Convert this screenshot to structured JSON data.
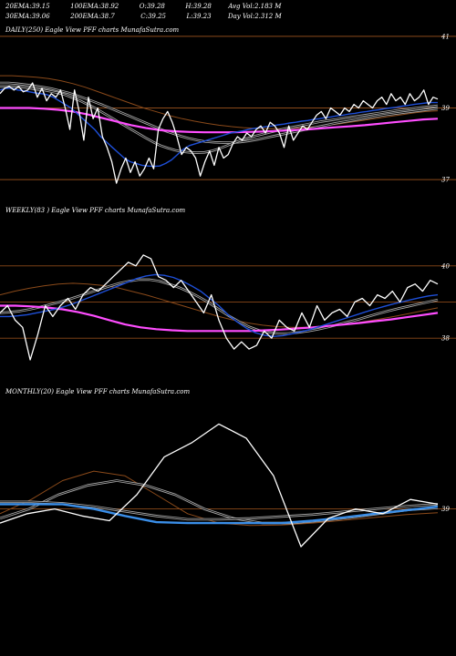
{
  "header": {
    "row1": [
      {
        "label": "20EMA:",
        "value": "39.15"
      },
      {
        "label": "100EMA:",
        "value": "38.92"
      },
      {
        "label": "O:",
        "value": "39.28"
      },
      {
        "label": "H:",
        "value": "39.28"
      },
      {
        "label": "Avg Vol:",
        "value": "2.183  M"
      }
    ],
    "row2": [
      {
        "label": "30EMA:",
        "value": "39.06"
      },
      {
        "label": "200EMA:",
        "value": "38.7"
      },
      {
        "label": "C:",
        "value": "39.25"
      },
      {
        "label": "L:",
        "value": "39.23"
      },
      {
        "label": "Day Vol:",
        "value": "2.312  M"
      }
    ]
  },
  "panels": {
    "daily": {
      "label": "DAILY(250) Eagle  View  PFF charts MunafaSutra.com"
    },
    "weekly": {
      "label": "WEEKLY(83                  ) Eagle  View  PFF charts MunafaSutra.com"
    },
    "monthly": {
      "label": "MONTHLY(20) Eagle  View  PFF charts MunafaSutra.com"
    }
  },
  "colors": {
    "background": "#000000",
    "price": "#ffffff",
    "ema20": "#1e4fd8",
    "ema_grey": "#aaaaaa",
    "ema_brown": "#8b4a1a",
    "ema200": "#ff4dff",
    "hline": "#8b4a1a"
  },
  "chart_data": [
    {
      "type": "line",
      "name": "daily",
      "ylim": [
        36.8,
        41.2
      ],
      "ticks": [
        {
          "y": 41,
          "label": "41"
        },
        {
          "y": 39,
          "label": "39"
        },
        {
          "y": 37,
          "label": "37"
        }
      ],
      "hlines": [
        41,
        39,
        37
      ],
      "series": [
        {
          "key": "price",
          "values": [
            39.4,
            39.55,
            39.6,
            39.5,
            39.6,
            39.45,
            39.5,
            39.7,
            39.3,
            39.55,
            39.2,
            39.4,
            39.3,
            39.5,
            39.0,
            38.4,
            39.5,
            38.9,
            38.1,
            39.3,
            38.7,
            39.0,
            38.2,
            37.9,
            37.5,
            36.9,
            37.3,
            37.6,
            37.2,
            37.5,
            37.1,
            37.3,
            37.6,
            37.3,
            38.4,
            38.7,
            38.9,
            38.6,
            38.2,
            37.7,
            37.9,
            37.8,
            37.6,
            37.1,
            37.5,
            37.8,
            37.4,
            37.9,
            37.6,
            37.7,
            38.0,
            38.2,
            38.1,
            38.3,
            38.2,
            38.4,
            38.5,
            38.3,
            38.6,
            38.5,
            38.3,
            37.9,
            38.5,
            38.1,
            38.3,
            38.5,
            38.4,
            38.6,
            38.8,
            38.9,
            38.7,
            39.0,
            38.9,
            38.8,
            39.0,
            38.9,
            39.1,
            39.0,
            39.2,
            39.1,
            39.0,
            39.2,
            39.3,
            39.1,
            39.4,
            39.2,
            39.3,
            39.1,
            39.4,
            39.2,
            39.3,
            39.5,
            39.1,
            39.3,
            39.25
          ]
        },
        {
          "key": "ema20",
          "values": [
            39.5,
            39.55,
            39.55,
            39.5,
            39.48,
            39.45,
            39.42,
            39.4,
            39.37,
            39.3,
            39.2,
            39.1,
            39.0,
            38.85,
            38.7,
            38.55,
            38.4,
            38.2,
            38.05,
            37.9,
            37.75,
            37.6,
            37.5,
            37.45,
            37.4,
            37.38,
            37.37,
            37.38,
            37.45,
            37.55,
            37.7,
            37.85,
            37.95,
            38.0,
            38.05,
            38.1,
            38.15,
            38.2,
            38.25,
            38.3,
            38.33,
            38.36,
            38.4,
            38.43,
            38.45,
            38.48,
            38.5,
            38.53,
            38.55,
            38.58,
            38.6,
            38.63,
            38.65,
            38.68,
            38.7,
            38.73,
            38.75,
            38.78,
            38.8,
            38.83,
            38.85,
            38.88,
            38.9,
            38.93,
            38.95,
            38.98,
            39.0,
            39.02,
            39.05,
            39.07,
            39.1,
            39.12,
            39.14,
            39.15,
            39.15
          ]
        },
        {
          "key": "ema30",
          "values": [
            39.6,
            39.6,
            39.6,
            39.58,
            39.55,
            39.52,
            39.5,
            39.46,
            39.42,
            39.36,
            39.28,
            39.2,
            39.1,
            39.0,
            38.88,
            38.76,
            38.64,
            38.52,
            38.4,
            38.28,
            38.16,
            38.05,
            37.95,
            37.88,
            37.82,
            37.78,
            37.76,
            37.75,
            37.76,
            37.8,
            37.86,
            37.94,
            38.02,
            38.1,
            38.16,
            38.22,
            38.27,
            38.32,
            38.37,
            38.42,
            38.46,
            38.5,
            38.54,
            38.58,
            38.62,
            38.65,
            38.68,
            38.71,
            38.74,
            38.77,
            38.8,
            38.83,
            38.86,
            38.89,
            38.92,
            38.95,
            38.97,
            39.0,
            39.02,
            39.04,
            39.06
          ]
        },
        {
          "key": "ema50",
          "values": [
            39.7,
            39.7,
            39.68,
            39.65,
            39.62,
            39.58,
            39.54,
            39.48,
            39.42,
            39.34,
            39.26,
            39.17,
            39.08,
            38.98,
            38.88,
            38.78,
            38.68,
            38.58,
            38.48,
            38.38,
            38.3,
            38.22,
            38.15,
            38.1,
            38.06,
            38.04,
            38.03,
            38.03,
            38.05,
            38.08,
            38.12,
            38.17,
            38.22,
            38.27,
            38.32,
            38.37,
            38.42,
            38.47,
            38.52,
            38.57,
            38.61,
            38.65,
            38.69,
            38.73,
            38.77,
            38.81,
            38.84,
            38.87,
            38.9,
            38.93,
            38.96,
            38.99
          ]
        },
        {
          "key": "ema100",
          "values": [
            39.9,
            39.9,
            39.88,
            39.86,
            39.82,
            39.76,
            39.68,
            39.58,
            39.46,
            39.34,
            39.22,
            39.1,
            38.98,
            38.88,
            38.78,
            38.7,
            38.63,
            38.57,
            38.52,
            38.48,
            38.45,
            38.43,
            38.42,
            38.42,
            38.43,
            38.45,
            38.48,
            38.52,
            38.56,
            38.61,
            38.66,
            38.71,
            38.76,
            38.81,
            38.86,
            38.9,
            38.92
          ]
        },
        {
          "key": "ema200",
          "values": [
            39.0,
            39.0,
            39.0,
            38.98,
            38.95,
            38.9,
            38.82,
            38.72,
            38.62,
            38.52,
            38.44,
            38.38,
            38.35,
            38.33,
            38.32,
            38.32,
            38.32,
            38.33,
            38.34,
            38.36,
            38.38,
            38.4,
            38.43,
            38.46,
            38.49,
            38.52,
            38.56,
            38.6,
            38.64,
            38.68,
            38.7
          ]
        }
      ]
    },
    {
      "type": "line",
      "name": "weekly",
      "ylim": [
        37.4,
        40.5
      ],
      "ticks": [
        {
          "y": 40,
          "label": "40"
        },
        {
          "y": 38,
          "label": "38"
        }
      ],
      "hlines": [
        40,
        39,
        38
      ],
      "series": [
        {
          "key": "price",
          "values": [
            38.7,
            38.9,
            38.5,
            38.3,
            37.4,
            38.1,
            38.9,
            38.6,
            38.9,
            39.1,
            38.8,
            39.2,
            39.4,
            39.3,
            39.5,
            39.7,
            39.9,
            40.1,
            40.0,
            40.3,
            40.2,
            39.7,
            39.6,
            39.4,
            39.6,
            39.3,
            39.0,
            38.7,
            39.2,
            38.5,
            38.0,
            37.7,
            37.9,
            37.7,
            37.8,
            38.2,
            38.0,
            38.5,
            38.3,
            38.2,
            38.7,
            38.3,
            38.9,
            38.5,
            38.7,
            38.8,
            38.6,
            39.0,
            39.1,
            38.9,
            39.2,
            39.1,
            39.3,
            39.0,
            39.4,
            39.5,
            39.3,
            39.6,
            39.5
          ]
        },
        {
          "key": "ema20",
          "values": [
            38.6,
            38.6,
            38.62,
            38.65,
            38.7,
            38.75,
            38.8,
            38.87,
            38.95,
            39.05,
            39.15,
            39.25,
            39.35,
            39.45,
            39.55,
            39.65,
            39.72,
            39.76,
            39.74,
            39.68,
            39.58,
            39.45,
            39.3,
            39.1,
            38.9,
            38.65,
            38.45,
            38.28,
            38.15,
            38.08,
            38.05,
            38.07,
            38.12,
            38.18,
            38.24,
            38.32,
            38.4,
            38.48,
            38.56,
            38.64,
            38.72,
            38.8,
            38.87,
            38.94,
            39.0,
            39.06,
            39.12,
            39.17,
            39.2
          ]
        },
        {
          "key": "ema30",
          "values": [
            38.7,
            38.72,
            38.75,
            38.8,
            38.86,
            38.93,
            39.0,
            39.08,
            39.17,
            39.26,
            39.35,
            39.44,
            39.52,
            39.58,
            39.62,
            39.62,
            39.58,
            39.5,
            39.4,
            39.28,
            39.14,
            38.98,
            38.8,
            38.62,
            38.46,
            38.32,
            38.22,
            38.16,
            38.13,
            38.13,
            38.16,
            38.2,
            38.25,
            38.31,
            38.38,
            38.45,
            38.52,
            38.6,
            38.68,
            38.75,
            38.82,
            38.88,
            38.94,
            39.0,
            39.06
          ]
        },
        {
          "key": "ema100",
          "values": [
            39.2,
            39.3,
            39.38,
            39.45,
            39.5,
            39.52,
            39.5,
            39.46,
            39.4,
            39.3,
            39.2,
            39.08,
            38.96,
            38.84,
            38.72,
            38.6,
            38.5,
            38.42,
            38.36,
            38.32,
            38.3,
            38.3,
            38.32,
            38.35,
            38.4,
            38.46,
            38.53,
            38.6,
            38.68,
            38.76,
            38.84
          ]
        },
        {
          "key": "ema200",
          "values": [
            38.9,
            38.9,
            38.88,
            38.85,
            38.8,
            38.72,
            38.62,
            38.5,
            38.38,
            38.3,
            38.25,
            38.22,
            38.2,
            38.2,
            38.2,
            38.2,
            38.2,
            38.22,
            38.24,
            38.27,
            38.3,
            38.34,
            38.38,
            38.42,
            38.47,
            38.52,
            38.58,
            38.64,
            38.7
          ]
        }
      ]
    },
    {
      "type": "line",
      "name": "monthly",
      "ylim": [
        38.2,
        41.0
      ],
      "ticks": [
        {
          "y": 39,
          "label": "39"
        }
      ],
      "hlines": [
        39
      ],
      "series": [
        {
          "key": "price",
          "values": [
            38.7,
            38.9,
            39.0,
            38.85,
            38.75,
            39.3,
            40.1,
            40.4,
            40.8,
            40.5,
            39.7,
            38.2,
            38.8,
            39.0,
            38.9,
            39.2,
            39.1
          ]
        },
        {
          "key": "ema20",
          "values": [
            39.1,
            39.1,
            39.1,
            39.0,
            38.85,
            38.72,
            38.7,
            38.7,
            38.7,
            38.7,
            38.75,
            38.82,
            38.9,
            38.97,
            39.05
          ]
        },
        {
          "key": "ema30",
          "values": [
            39.15,
            39.15,
            39.12,
            39.05,
            38.95,
            38.85,
            38.78,
            38.78,
            38.8,
            38.84,
            38.88,
            38.94,
            39.0,
            39.06,
            39.1
          ]
        },
        {
          "key": "ema50",
          "values": [
            38.8,
            39.0,
            39.3,
            39.5,
            39.6,
            39.5,
            39.3,
            39.0,
            38.8,
            38.7,
            38.7,
            38.75,
            38.82,
            38.9,
            38.98,
            39.02
          ]
        },
        {
          "key": "ema100",
          "values": [
            38.9,
            39.2,
            39.6,
            39.8,
            39.7,
            39.3,
            38.9,
            38.7,
            38.65,
            38.66,
            38.7,
            38.76,
            38.82,
            38.88,
            38.92
          ]
        }
      ]
    }
  ]
}
